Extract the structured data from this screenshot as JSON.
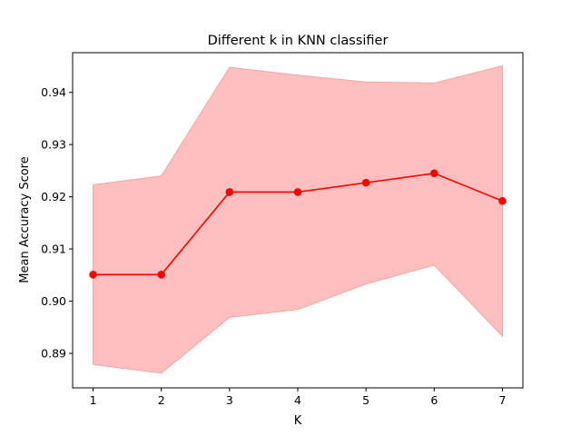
{
  "chart_data": {
    "type": "line",
    "title": "Different k in KNN classifier",
    "xlabel": "K",
    "ylabel": "Mean Accuracy Score",
    "x": [
      1,
      2,
      3,
      4,
      5,
      6,
      7
    ],
    "series": [
      {
        "values": [
          0.9051,
          0.9051,
          0.9209,
          0.9209,
          0.9227,
          0.9245,
          0.9192
        ],
        "band_upper": [
          0.9223,
          0.924,
          0.9448,
          0.9433,
          0.942,
          0.9418,
          0.9451
        ],
        "band_lower": [
          0.8879,
          0.8862,
          0.8969,
          0.8984,
          0.9033,
          0.9069,
          0.8933
        ],
        "color": "#ff0000",
        "band_color": "#ffbfbf"
      }
    ],
    "xticks": [
      "1",
      "2",
      "3",
      "4",
      "5",
      "6",
      "7"
    ],
    "yticks": [
      "0.89",
      "0.90",
      "0.91",
      "0.92",
      "0.93",
      "0.94"
    ],
    "xlim": [
      0.7,
      7.3
    ],
    "ylim": [
      0.8834,
      0.9476
    ],
    "grid": false
  }
}
